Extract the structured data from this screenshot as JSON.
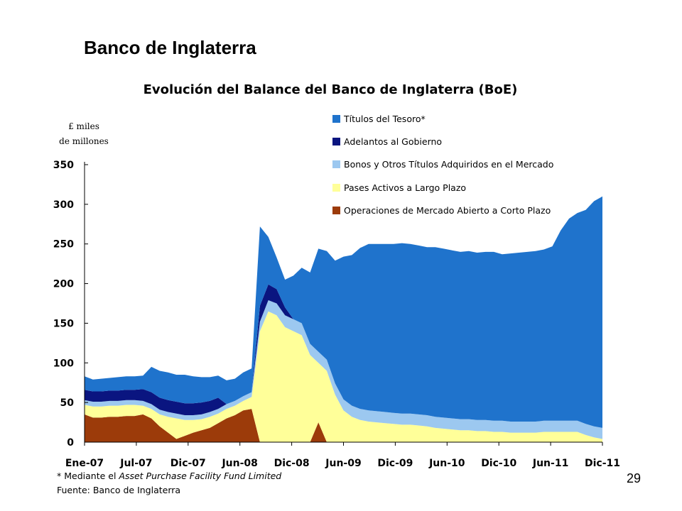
{
  "slide": {
    "title": "Banco de Inglaterra",
    "page_number": "29",
    "footnote_prefix": "* Mediante el ",
    "footnote_italic": "Asset Purchase Facility Fund Limited",
    "source": "Fuente: Banco de Inglaterra"
  },
  "chart_data": {
    "type": "area",
    "title": "Evolución del Balance del Banco de Inglaterra (BoE)",
    "unit_label_line1": "£ miles",
    "unit_label_line2": "de millones",
    "xlabel": "",
    "ylabel": "",
    "ylim": [
      0,
      350
    ],
    "yticks": [
      0,
      50,
      100,
      150,
      200,
      250,
      300,
      350
    ],
    "xlim": [
      "2007-01",
      "2012-03"
    ],
    "xtick_labels": [
      "Ene-07",
      "Jul-07",
      "Dic-07",
      "Jun-08",
      "Dic-08",
      "Jun-09",
      "Dic-09",
      "Jun-10",
      "Dic-10",
      "Jun-11",
      "Dic-11"
    ],
    "stacked": true,
    "legend_position": "top-right",
    "x": [
      "2007-01",
      "2007-02",
      "2007-03",
      "2007-04",
      "2007-05",
      "2007-06",
      "2007-07",
      "2007-08",
      "2007-09",
      "2007-10",
      "2007-11",
      "2007-12",
      "2008-01",
      "2008-02",
      "2008-03",
      "2008-04",
      "2008-05",
      "2008-06",
      "2008-07",
      "2008-08",
      "2008-09",
      "2008-10",
      "2008-11",
      "2008-12",
      "2009-01",
      "2009-02",
      "2009-03",
      "2009-04",
      "2009-05",
      "2009-06",
      "2009-07",
      "2009-08",
      "2009-09",
      "2009-10",
      "2009-11",
      "2009-12",
      "2010-01",
      "2010-02",
      "2010-03",
      "2010-04",
      "2010-05",
      "2010-06",
      "2010-07",
      "2010-08",
      "2010-09",
      "2010-10",
      "2010-11",
      "2010-12",
      "2011-01",
      "2011-02",
      "2011-03",
      "2011-04",
      "2011-05",
      "2011-06",
      "2011-07",
      "2011-08",
      "2011-09",
      "2011-10",
      "2011-11",
      "2011-12",
      "2012-01",
      "2012-02",
      "2012-03"
    ],
    "series": [
      {
        "name": "Operaciones de Mercado Abierto a Corto Plazo",
        "color": "#9c3b0a",
        "values": [
          35,
          31,
          31,
          32,
          32,
          33,
          33,
          35,
          30,
          20,
          12,
          4,
          8,
          12,
          15,
          18,
          24,
          30,
          34,
          40,
          42,
          0,
          0,
          0,
          0,
          0,
          0,
          0,
          25,
          0,
          0,
          0,
          0,
          0,
          0,
          0,
          0,
          0,
          0,
          0,
          0,
          0,
          0,
          0,
          0,
          0,
          0,
          0,
          0,
          0,
          0,
          0,
          0,
          0,
          0,
          0,
          0,
          0,
          0,
          0,
          0,
          0,
          0
        ]
      },
      {
        "name": "Pases Activos a Largo Plazo",
        "color": "#ffff99",
        "values": [
          12,
          14,
          14,
          14,
          14,
          14,
          14,
          11,
          12,
          15,
          20,
          26,
          20,
          16,
          14,
          14,
          12,
          12,
          12,
          12,
          15,
          140,
          165,
          160,
          145,
          140,
          135,
          110,
          75,
          90,
          60,
          40,
          32,
          28,
          26,
          25,
          24,
          23,
          22,
          22,
          21,
          20,
          18,
          17,
          16,
          15,
          15,
          14,
          14,
          13,
          13,
          12,
          12,
          12,
          12,
          13,
          13,
          13,
          13,
          13,
          9,
          6,
          4
        ]
      },
      {
        "name": "Bonos y Otros Títulos Adquiridos en el Mercado",
        "color": "#9cc8f0",
        "values": [
          6,
          6,
          6,
          6,
          6,
          6,
          6,
          6,
          6,
          6,
          6,
          6,
          6,
          6,
          6,
          6,
          6,
          6,
          6,
          6,
          6,
          12,
          14,
          15,
          15,
          15,
          15,
          14,
          14,
          14,
          14,
          14,
          14,
          14,
          14,
          14,
          14,
          14,
          14,
          14,
          14,
          14,
          14,
          14,
          14,
          14,
          14,
          14,
          14,
          14,
          14,
          14,
          14,
          14,
          14,
          14,
          14,
          14,
          14,
          14,
          14,
          14,
          14
        ]
      },
      {
        "name": "Adelantos al Gobierno",
        "color": "#0a1580",
        "values": [
          13,
          13,
          13,
          13,
          13,
          13,
          13,
          15,
          15,
          15,
          15,
          15,
          15,
          15,
          15,
          14,
          14,
          0,
          0,
          0,
          0,
          20,
          20,
          18,
          10,
          0,
          0,
          0,
          0,
          0,
          0,
          0,
          0,
          0,
          0,
          0,
          0,
          0,
          0,
          0,
          0,
          0,
          0,
          0,
          0,
          0,
          0,
          0,
          0,
          0,
          0,
          0,
          0,
          0,
          0,
          0,
          0,
          0,
          0,
          0,
          0,
          0,
          0
        ]
      },
      {
        "name": "Títulos del Tesoro*",
        "color": "#1f73cc",
        "values": [
          17,
          15,
          16,
          16,
          17,
          17,
          17,
          17,
          32,
          34,
          35,
          34,
          36,
          34,
          32,
          30,
          28,
          30,
          28,
          30,
          30,
          100,
          60,
          40,
          35,
          55,
          70,
          90,
          130,
          137,
          155,
          180,
          190,
          203,
          210,
          211,
          212,
          213,
          215,
          214,
          213,
          212,
          214,
          213,
          212,
          211,
          212,
          211,
          212,
          213,
          210,
          212,
          213,
          214,
          215,
          216,
          220,
          240,
          255,
          262,
          270,
          284,
          292
        ]
      }
    ]
  }
}
